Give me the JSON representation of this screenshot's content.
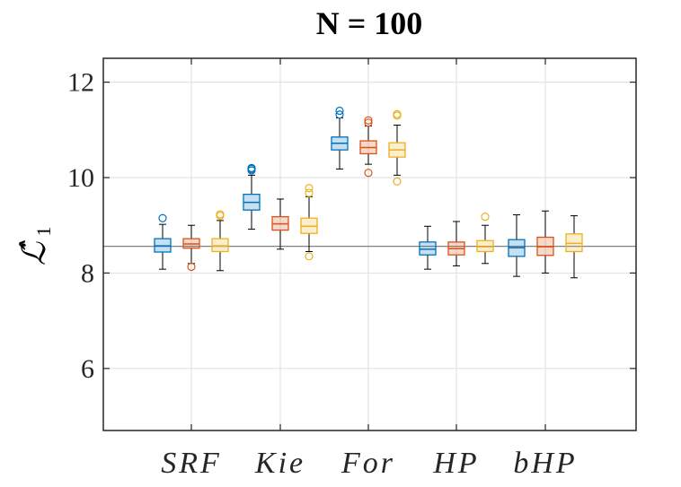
{
  "chart_data": {
    "type": "box",
    "title": "N = 100",
    "ylabel": "ℒ̂",
    "ylabel_subscript": "1",
    "ylim": [
      4.7,
      12.5
    ],
    "yticks": [
      6,
      8,
      10,
      12
    ],
    "grid": true,
    "categories": [
      "SRF",
      "Kie",
      "For",
      "HP",
      "bHP"
    ],
    "reference_line": 8.56,
    "colors": {
      "blue": "#0072BD",
      "orange": "#D95319",
      "yellow": "#EDB120",
      "reference": "#808080"
    },
    "series_colors": [
      "blue",
      "orange",
      "yellow"
    ],
    "boxes": [
      {
        "category": "SRF",
        "series": 0,
        "whisker_low": 8.08,
        "q1": 8.44,
        "median": 8.57,
        "q3": 8.72,
        "whisker_high": 9.02,
        "outliers": [
          9.15
        ]
      },
      {
        "category": "SRF",
        "series": 1,
        "whisker_low": 8.2,
        "q1": 8.52,
        "median": 8.61,
        "q3": 8.72,
        "whisker_high": 9.0,
        "outliers": [
          8.13
        ]
      },
      {
        "category": "SRF",
        "series": 2,
        "whisker_low": 8.05,
        "q1": 8.45,
        "median": 8.57,
        "q3": 8.72,
        "whisker_high": 9.1,
        "outliers": [
          9.2,
          9.23
        ]
      },
      {
        "category": "Kie",
        "series": 0,
        "whisker_low": 8.92,
        "q1": 9.32,
        "median": 9.48,
        "q3": 9.65,
        "whisker_high": 10.05,
        "outliers": [
          10.15,
          10.18,
          10.2
        ]
      },
      {
        "category": "Kie",
        "series": 1,
        "whisker_low": 8.5,
        "q1": 8.9,
        "median": 9.03,
        "q3": 9.18,
        "whisker_high": 9.55,
        "outliers": []
      },
      {
        "category": "Kie",
        "series": 2,
        "whisker_low": 8.45,
        "q1": 8.83,
        "median": 8.98,
        "q3": 9.15,
        "whisker_high": 9.6,
        "outliers": [
          8.35,
          9.68,
          9.78
        ]
      },
      {
        "category": "For",
        "series": 0,
        "whisker_low": 10.18,
        "q1": 10.58,
        "median": 10.72,
        "q3": 10.85,
        "whisker_high": 11.25,
        "outliers": [
          11.32,
          11.4
        ]
      },
      {
        "category": "For",
        "series": 1,
        "whisker_low": 10.28,
        "q1": 10.5,
        "median": 10.63,
        "q3": 10.77,
        "whisker_high": 11.08,
        "outliers": [
          10.1,
          11.15,
          11.2
        ]
      },
      {
        "category": "For",
        "series": 2,
        "whisker_low": 10.05,
        "q1": 10.43,
        "median": 10.58,
        "q3": 10.73,
        "whisker_high": 11.1,
        "outliers": [
          9.92,
          11.3,
          11.33
        ]
      },
      {
        "category": "HP",
        "series": 0,
        "whisker_low": 8.08,
        "q1": 8.38,
        "median": 8.5,
        "q3": 8.65,
        "whisker_high": 8.98,
        "outliers": []
      },
      {
        "category": "HP",
        "series": 1,
        "whisker_low": 8.15,
        "q1": 8.38,
        "median": 8.51,
        "q3": 8.65,
        "whisker_high": 9.08,
        "outliers": []
      },
      {
        "category": "HP",
        "series": 2,
        "whisker_low": 8.2,
        "q1": 8.45,
        "median": 8.55,
        "q3": 8.68,
        "whisker_high": 9.0,
        "outliers": [
          9.18
        ]
      },
      {
        "category": "bHP",
        "series": 0,
        "whisker_low": 7.93,
        "q1": 8.35,
        "median": 8.53,
        "q3": 8.7,
        "whisker_high": 9.22,
        "outliers": []
      },
      {
        "category": "bHP",
        "series": 1,
        "whisker_low": 8.0,
        "q1": 8.37,
        "median": 8.55,
        "q3": 8.75,
        "whisker_high": 9.3,
        "outliers": []
      },
      {
        "category": "bHP",
        "series": 2,
        "whisker_low": 7.9,
        "q1": 8.45,
        "median": 8.62,
        "q3": 8.82,
        "whisker_high": 9.2,
        "outliers": []
      }
    ]
  }
}
